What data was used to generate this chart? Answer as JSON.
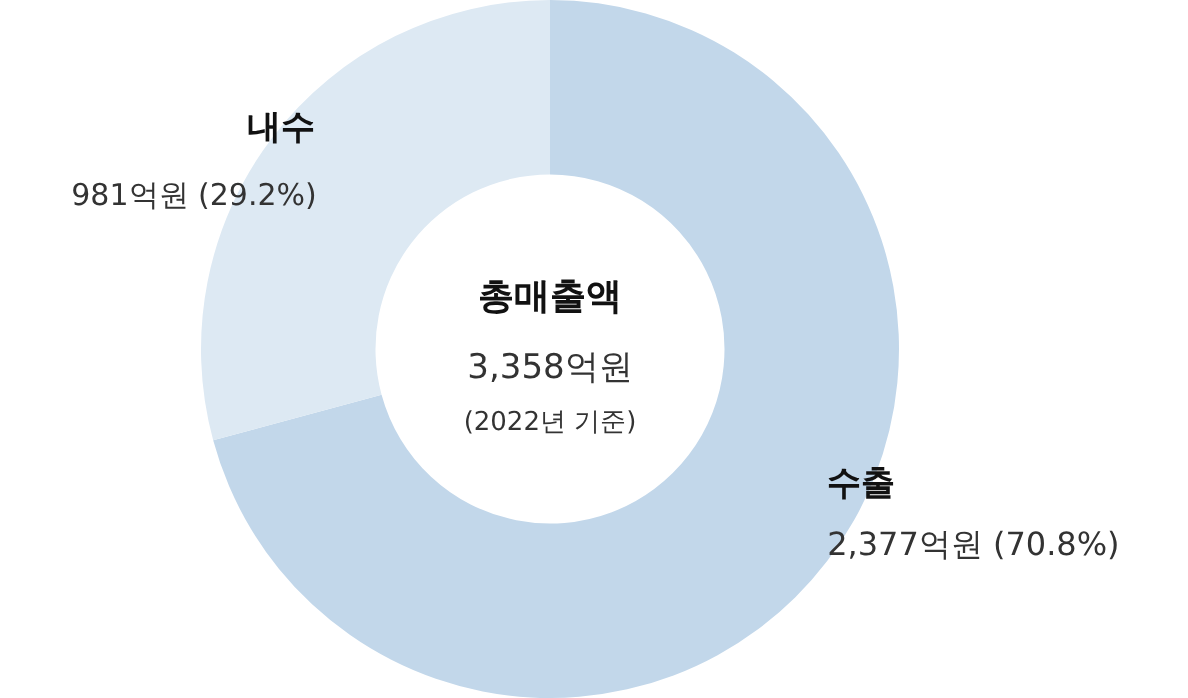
{
  "chart_data": {
    "type": "donut",
    "title": "총매출액",
    "categories": [
      "수출",
      "내수"
    ],
    "values": [
      2377,
      981
    ],
    "colors": [
      "#c2d7ea",
      "#dde9f3"
    ],
    "value_labels": [
      "2,377억원 (70.8%)",
      "981억원 (29.2%)"
    ],
    "annotations": [
      "3,358억원",
      "(2022년 기준)"
    ],
    "legend": false
  }
}
